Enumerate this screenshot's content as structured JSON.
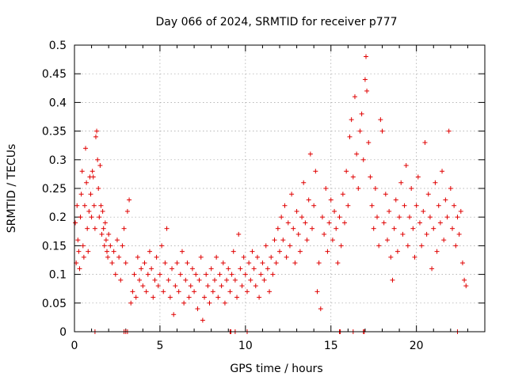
{
  "chart_data": {
    "type": "scatter",
    "title": "Day 066 of 2024, SRMTID for receiver p777",
    "xlabel": "GPS time / hours",
    "ylabel": "SRMTID / TECUs",
    "xlim": [
      0,
      24
    ],
    "ylim": [
      0,
      0.5
    ],
    "xticks": [
      0,
      5,
      10,
      15,
      20
    ],
    "xtick_labels": [
      "0",
      "5",
      "10",
      "15",
      "20"
    ],
    "yticks": [
      0,
      0.05,
      0.1,
      0.15,
      0.2,
      0.25,
      0.3,
      0.35,
      0.4,
      0.45,
      0.5
    ],
    "ytick_labels": [
      "0",
      "0.05",
      "0.1",
      "0.15",
      "0.2",
      "0.25",
      "0.3",
      "0.35",
      "0.4",
      "0.45",
      "0.5"
    ],
    "grid": true,
    "marker": "+",
    "color": "#e00000",
    "series": [
      {
        "name": "SRMTID",
        "points": [
          [
            0.05,
            0.19
          ],
          [
            0.1,
            0.12
          ],
          [
            0.15,
            0.22
          ],
          [
            0.2,
            0.16
          ],
          [
            0.25,
            0.14
          ],
          [
            0.3,
            0.11
          ],
          [
            0.35,
            0.2
          ],
          [
            0.4,
            0.24
          ],
          [
            0.45,
            0.28
          ],
          [
            0.5,
            0.15
          ],
          [
            0.55,
            0.13
          ],
          [
            0.6,
            0.22
          ],
          [
            0.65,
            0.32
          ],
          [
            0.7,
            0.26
          ],
          [
            0.75,
            0.18
          ],
          [
            0.8,
            0.14
          ],
          [
            0.85,
            0.21
          ],
          [
            0.9,
            0.27
          ],
          [
            0.95,
            0.24
          ],
          [
            1.0,
            0.2
          ],
          [
            1.05,
            0.28
          ],
          [
            1.1,
            0.27
          ],
          [
            1.15,
            0.22
          ],
          [
            1.2,
            0.18
          ],
          [
            1.25,
            0.34
          ],
          [
            1.3,
            0.35
          ],
          [
            1.35,
            0.3
          ],
          [
            1.4,
            0.25
          ],
          [
            1.45,
            0.2
          ],
          [
            1.5,
            0.29
          ],
          [
            1.55,
            0.22
          ],
          [
            1.6,
            0.17
          ],
          [
            1.65,
            0.21
          ],
          [
            1.7,
            0.18
          ],
          [
            1.75,
            0.15
          ],
          [
            1.8,
            0.19
          ],
          [
            1.85,
            0.16
          ],
          [
            1.9,
            0.14
          ],
          [
            1.95,
            0.13
          ],
          [
            2.0,
            0.17
          ],
          [
            2.1,
            0.15
          ],
          [
            2.2,
            0.12
          ],
          [
            2.3,
            0.14
          ],
          [
            2.4,
            0.1
          ],
          [
            2.5,
            0.16
          ],
          [
            2.6,
            0.13
          ],
          [
            2.7,
            0.09
          ],
          [
            2.8,
            0.15
          ],
          [
            2.9,
            0.18
          ],
          [
            3.0,
            0.12
          ],
          [
            3.1,
            0.21
          ],
          [
            3.2,
            0.23
          ],
          [
            3.3,
            0.05
          ],
          [
            3.4,
            0.07
          ],
          [
            3.5,
            0.1
          ],
          [
            3.6,
            0.06
          ],
          [
            3.7,
            0.13
          ],
          [
            3.8,
            0.09
          ],
          [
            3.9,
            0.11
          ],
          [
            4.0,
            0.08
          ],
          [
            4.1,
            0.12
          ],
          [
            4.2,
            0.07
          ],
          [
            4.3,
            0.1
          ],
          [
            4.4,
            0.14
          ],
          [
            4.5,
            0.11
          ],
          [
            4.6,
            0.06
          ],
          [
            4.7,
            0.09
          ],
          [
            4.8,
            0.13
          ],
          [
            4.9,
            0.08
          ],
          [
            5.0,
            0.1
          ],
          [
            5.1,
            0.15
          ],
          [
            5.2,
            0.07
          ],
          [
            5.3,
            0.12
          ],
          [
            5.4,
            0.18
          ],
          [
            5.5,
            0.09
          ],
          [
            5.6,
            0.06
          ],
          [
            5.7,
            0.11
          ],
          [
            5.8,
            0.03
          ],
          [
            5.9,
            0.08
          ],
          [
            6.0,
            0.12
          ],
          [
            6.1,
            0.07
          ],
          [
            6.2,
            0.1
          ],
          [
            6.3,
            0.14
          ],
          [
            6.4,
            0.05
          ],
          [
            6.5,
            0.09
          ],
          [
            6.6,
            0.12
          ],
          [
            6.7,
            0.06
          ],
          [
            6.8,
            0.08
          ],
          [
            6.9,
            0.11
          ],
          [
            7.0,
            0.07
          ],
          [
            7.1,
            0.1
          ],
          [
            7.2,
            0.04
          ],
          [
            7.3,
            0.09
          ],
          [
            7.4,
            0.13
          ],
          [
            7.5,
            0.02
          ],
          [
            7.6,
            0.06
          ],
          [
            7.7,
            0.1
          ],
          [
            7.8,
            0.08
          ],
          [
            7.9,
            0.05
          ],
          [
            8.0,
            0.11
          ],
          [
            8.1,
            0.07
          ],
          [
            8.2,
            0.09
          ],
          [
            8.3,
            0.13
          ],
          [
            8.4,
            0.06
          ],
          [
            8.5,
            0.1
          ],
          [
            8.6,
            0.08
          ],
          [
            8.7,
            0.12
          ],
          [
            8.8,
            0.05
          ],
          [
            8.9,
            0.09
          ],
          [
            9.0,
            0.11
          ],
          [
            9.1,
            0.07
          ],
          [
            9.2,
            0.1
          ],
          [
            9.3,
            0.14
          ],
          [
            9.4,
            0.09
          ],
          [
            9.5,
            0.06
          ],
          [
            9.6,
            0.17
          ],
          [
            9.7,
            0.11
          ],
          [
            9.8,
            0.08
          ],
          [
            9.9,
            0.13
          ],
          [
            10.0,
            0.1
          ],
          [
            10.1,
            0.07
          ],
          [
            10.2,
            0.12
          ],
          [
            10.3,
            0.09
          ],
          [
            10.4,
            0.14
          ],
          [
            10.5,
            0.11
          ],
          [
            10.6,
            0.08
          ],
          [
            10.7,
            0.13
          ],
          [
            10.8,
            0.06
          ],
          [
            10.9,
            0.1
          ],
          [
            11.0,
            0.12
          ],
          [
            11.1,
            0.09
          ],
          [
            11.2,
            0.15
          ],
          [
            11.3,
            0.11
          ],
          [
            11.4,
            0.07
          ],
          [
            11.5,
            0.13
          ],
          [
            11.6,
            0.1
          ],
          [
            11.7,
            0.16
          ],
          [
            11.8,
            0.12
          ],
          [
            11.9,
            0.18
          ],
          [
            12.0,
            0.14
          ],
          [
            12.1,
            0.2
          ],
          [
            12.2,
            0.16
          ],
          [
            12.3,
            0.22
          ],
          [
            12.4,
            0.13
          ],
          [
            12.5,
            0.19
          ],
          [
            12.6,
            0.15
          ],
          [
            12.7,
            0.24
          ],
          [
            12.8,
            0.18
          ],
          [
            12.9,
            0.12
          ],
          [
            13.0,
            0.21
          ],
          [
            13.1,
            0.17
          ],
          [
            13.2,
            0.14
          ],
          [
            13.3,
            0.2
          ],
          [
            13.4,
            0.26
          ],
          [
            13.5,
            0.19
          ],
          [
            13.6,
            0.16
          ],
          [
            13.7,
            0.23
          ],
          [
            13.8,
            0.31
          ],
          [
            13.9,
            0.18
          ],
          [
            14.0,
            0.22
          ],
          [
            14.1,
            0.28
          ],
          [
            14.2,
            0.07
          ],
          [
            14.3,
            0.12
          ],
          [
            14.4,
            0.04
          ],
          [
            14.5,
            0.2
          ],
          [
            14.6,
            0.17
          ],
          [
            14.7,
            0.25
          ],
          [
            14.8,
            0.14
          ],
          [
            14.9,
            0.19
          ],
          [
            15.0,
            0.23
          ],
          [
            15.1,
            0.16
          ],
          [
            15.2,
            0.21
          ],
          [
            15.3,
            0.18
          ],
          [
            15.4,
            0.12
          ],
          [
            15.5,
            0.2
          ],
          [
            15.6,
            0.15
          ],
          [
            15.7,
            0.24
          ],
          [
            15.8,
            0.19
          ],
          [
            15.9,
            0.28
          ],
          [
            16.0,
            0.22
          ],
          [
            16.1,
            0.34
          ],
          [
            16.2,
            0.37
          ],
          [
            16.3,
            0.27
          ],
          [
            16.4,
            0.41
          ],
          [
            16.5,
            0.31
          ],
          [
            16.6,
            0.25
          ],
          [
            16.7,
            0.35
          ],
          [
            16.8,
            0.38
          ],
          [
            16.9,
            0.3
          ],
          [
            17.0,
            0.44
          ],
          [
            17.05,
            0.48
          ],
          [
            17.1,
            0.42
          ],
          [
            17.2,
            0.33
          ],
          [
            17.3,
            0.27
          ],
          [
            17.4,
            0.22
          ],
          [
            17.5,
            0.18
          ],
          [
            17.6,
            0.25
          ],
          [
            17.7,
            0.2
          ],
          [
            17.8,
            0.15
          ],
          [
            17.9,
            0.37
          ],
          [
            18.0,
            0.35
          ],
          [
            18.1,
            0.19
          ],
          [
            18.2,
            0.24
          ],
          [
            18.3,
            0.16
          ],
          [
            18.4,
            0.21
          ],
          [
            18.5,
            0.13
          ],
          [
            18.6,
            0.09
          ],
          [
            18.7,
            0.18
          ],
          [
            18.8,
            0.23
          ],
          [
            18.9,
            0.14
          ],
          [
            19.0,
            0.2
          ],
          [
            19.1,
            0.26
          ],
          [
            19.2,
            0.17
          ],
          [
            19.3,
            0.22
          ],
          [
            19.4,
            0.29
          ],
          [
            19.5,
            0.15
          ],
          [
            19.6,
            0.2
          ],
          [
            19.7,
            0.25
          ],
          [
            19.8,
            0.18
          ],
          [
            19.9,
            0.13
          ],
          [
            20.0,
            0.22
          ],
          [
            20.1,
            0.27
          ],
          [
            20.2,
            0.19
          ],
          [
            20.3,
            0.15
          ],
          [
            20.4,
            0.21
          ],
          [
            20.5,
            0.33
          ],
          [
            20.6,
            0.17
          ],
          [
            20.7,
            0.24
          ],
          [
            20.8,
            0.2
          ],
          [
            20.9,
            0.11
          ],
          [
            21.0,
            0.18
          ],
          [
            21.1,
            0.26
          ],
          [
            21.2,
            0.14
          ],
          [
            21.3,
            0.22
          ],
          [
            21.4,
            0.19
          ],
          [
            21.5,
            0.28
          ],
          [
            21.6,
            0.16
          ],
          [
            21.7,
            0.23
          ],
          [
            21.8,
            0.2
          ],
          [
            21.9,
            0.35
          ],
          [
            22.0,
            0.25
          ],
          [
            22.1,
            0.18
          ],
          [
            22.2,
            0.22
          ],
          [
            22.3,
            0.15
          ],
          [
            22.4,
            0.2
          ],
          [
            22.5,
            0.17
          ],
          [
            22.6,
            0.21
          ],
          [
            22.7,
            0.12
          ],
          [
            22.8,
            0.09
          ],
          [
            22.9,
            0.08
          ]
        ]
      }
    ],
    "zero_markers_x": [
      1.2,
      2.9,
      3.0,
      3.1,
      9.1,
      9.15,
      9.4,
      10.1,
      15.5,
      15.55,
      16.3,
      16.9,
      16.95,
      22.4
    ]
  }
}
